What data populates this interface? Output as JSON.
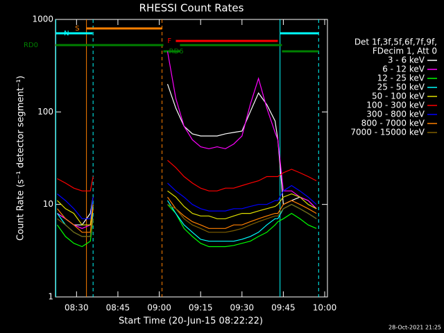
{
  "chart_data": {
    "type": "line",
    "title": "RHESSI Count Rates",
    "xlabel": "Start Time (20-Jun-15 08:22:22)",
    "ylabel": "Count Rate (s⁻¹ detector segment⁻¹)",
    "footnote": "28-Oct-2021 21:25",
    "legend_title": [
      "Det 1f,3f,5f,6f,7f,9f,",
      "FDecim 1, Att 0"
    ],
    "log_y": true,
    "xlim": [
      502.37,
      601
    ],
    "ylim": [
      1,
      1000
    ],
    "xticks": [
      {
        "value": 510,
        "label": "08:30"
      },
      {
        "value": 525,
        "label": "08:45"
      },
      {
        "value": 540,
        "label": "09:00"
      },
      {
        "value": 555,
        "label": "09:15"
      },
      {
        "value": 570,
        "label": "09:30"
      },
      {
        "value": 585,
        "label": "09:45"
      },
      {
        "value": 600,
        "label": "10:00"
      }
    ],
    "yticks": [
      1,
      10,
      100,
      1000
    ],
    "x": [
      503,
      506,
      509,
      512,
      515,
      516,
      540,
      543,
      546,
      549,
      552,
      555,
      558,
      561,
      564,
      567,
      570,
      573,
      576,
      579,
      582,
      583,
      585,
      588,
      591,
      594,
      597
    ],
    "series": [
      {
        "name": "3 - 6 keV",
        "color": "#ffffff",
        "values": [
          8,
          7,
          6,
          6,
          8,
          12,
          null,
          200,
          110,
          70,
          58,
          55,
          55,
          55,
          58,
          60,
          62,
          100,
          160,
          120,
          80,
          50,
          10,
          11,
          12,
          11,
          9
        ]
      },
      {
        "name": "6 - 12 keV",
        "color": "#ff00ff",
        "values": [
          8,
          7,
          6,
          5.5,
          6,
          10,
          null,
          450,
          140,
          70,
          50,
          42,
          40,
          42,
          40,
          45,
          55,
          120,
          230,
          110,
          60,
          50,
          14,
          14,
          12,
          11,
          9
        ]
      },
      {
        "name": "12 - 25 keV",
        "color": "#00ff00",
        "values": [
          6,
          4.5,
          3.8,
          3.5,
          4,
          7,
          null,
          10,
          8,
          5.5,
          4.5,
          3.8,
          3.5,
          3.5,
          3.5,
          3.6,
          3.8,
          4,
          4.5,
          5,
          6,
          6.5,
          7,
          8,
          7,
          6,
          5.5
        ]
      },
      {
        "name": "25 - 50 keV",
        "color": "#00ffff",
        "values": [
          8,
          6,
          5,
          4.5,
          4.5,
          8,
          null,
          11,
          8,
          6,
          5,
          4.2,
          4,
          4,
          4,
          4,
          4.2,
          4.5,
          5,
          6,
          7,
          7,
          9,
          10,
          9,
          8,
          7
        ]
      },
      {
        "name": "50 - 100 keV",
        "color": "#e0e000",
        "values": [
          11,
          9,
          8,
          6,
          6,
          10,
          null,
          14,
          12,
          9.5,
          8,
          7.5,
          7.5,
          7,
          7,
          7.5,
          8,
          8,
          8.5,
          9,
          9.5,
          10,
          12,
          13,
          12,
          10,
          9
        ]
      },
      {
        "name": "100 - 300 keV",
        "color": "#ff0000",
        "values": [
          19,
          17,
          15,
          14,
          14,
          20,
          null,
          30,
          25,
          20,
          17,
          15,
          14,
          14,
          15,
          15,
          16,
          17,
          18,
          20,
          20,
          20,
          22,
          24,
          22,
          20,
          18
        ]
      },
      {
        "name": "300 - 800 keV",
        "color": "#0000ff",
        "values": [
          13,
          11,
          9,
          7,
          7,
          12,
          null,
          17,
          14,
          12,
          10,
          9,
          8.5,
          8.5,
          8.5,
          9,
          9,
          9.5,
          10,
          10,
          11,
          11,
          14,
          16,
          14,
          12,
          10
        ]
      },
      {
        "name": "800 - 7000 keV",
        "color": "#ff8000",
        "values": [
          9,
          7,
          6,
          5,
          5,
          9,
          null,
          12,
          9,
          7.5,
          6.5,
          6,
          5.5,
          5.5,
          5.5,
          6,
          6,
          6.5,
          7,
          7.5,
          8,
          8,
          10,
          11,
          10,
          9,
          8
        ]
      },
      {
        "name": "7000 - 15000 keV",
        "color": "#806000",
        "values": [
          7,
          6,
          5,
          4.5,
          4.5,
          7,
          null,
          10,
          9,
          7,
          6,
          5.5,
          5,
          5,
          5,
          5.2,
          5.5,
          6,
          6.5,
          7,
          7.5,
          7.5,
          9,
          10,
          9,
          8,
          7
        ]
      }
    ],
    "vlines": [
      {
        "x": 502.5,
        "color": "#00ffff",
        "dashed": false
      },
      {
        "x": 513.6,
        "color": "#ff8000",
        "dashed": false
      },
      {
        "x": 516,
        "color": "#00ffff",
        "dashed": true
      },
      {
        "x": 541,
        "color": "#ff8000",
        "dashed": true
      },
      {
        "x": 583.8,
        "color": "#00ffff",
        "dashed": false
      },
      {
        "x": 597.8,
        "color": "#00ffff",
        "dashed": true
      }
    ],
    "flags": [
      {
        "label": "S",
        "color": "#ff8000",
        "spans": [
          [
            513.6,
            541
          ]
        ]
      },
      {
        "label": "N",
        "color": "#00ffff",
        "spans": [
          [
            502.4,
            515.8
          ],
          [
            583.8,
            597.8
          ]
        ]
      },
      {
        "label": "F",
        "color": "#ff0000",
        "spans": [
          [
            546,
            583
          ]
        ]
      },
      {
        "label": "RD0",
        "color": "#008000",
        "spans": [
          [
            502.4,
            541.5
          ],
          [
            547.5,
            584.5
          ]
        ]
      },
      {
        "label": "RD6",
        "color": "#008000",
        "spans": [
          [
            541.5,
            547.5
          ],
          [
            584.5,
            597.8
          ]
        ]
      }
    ]
  }
}
